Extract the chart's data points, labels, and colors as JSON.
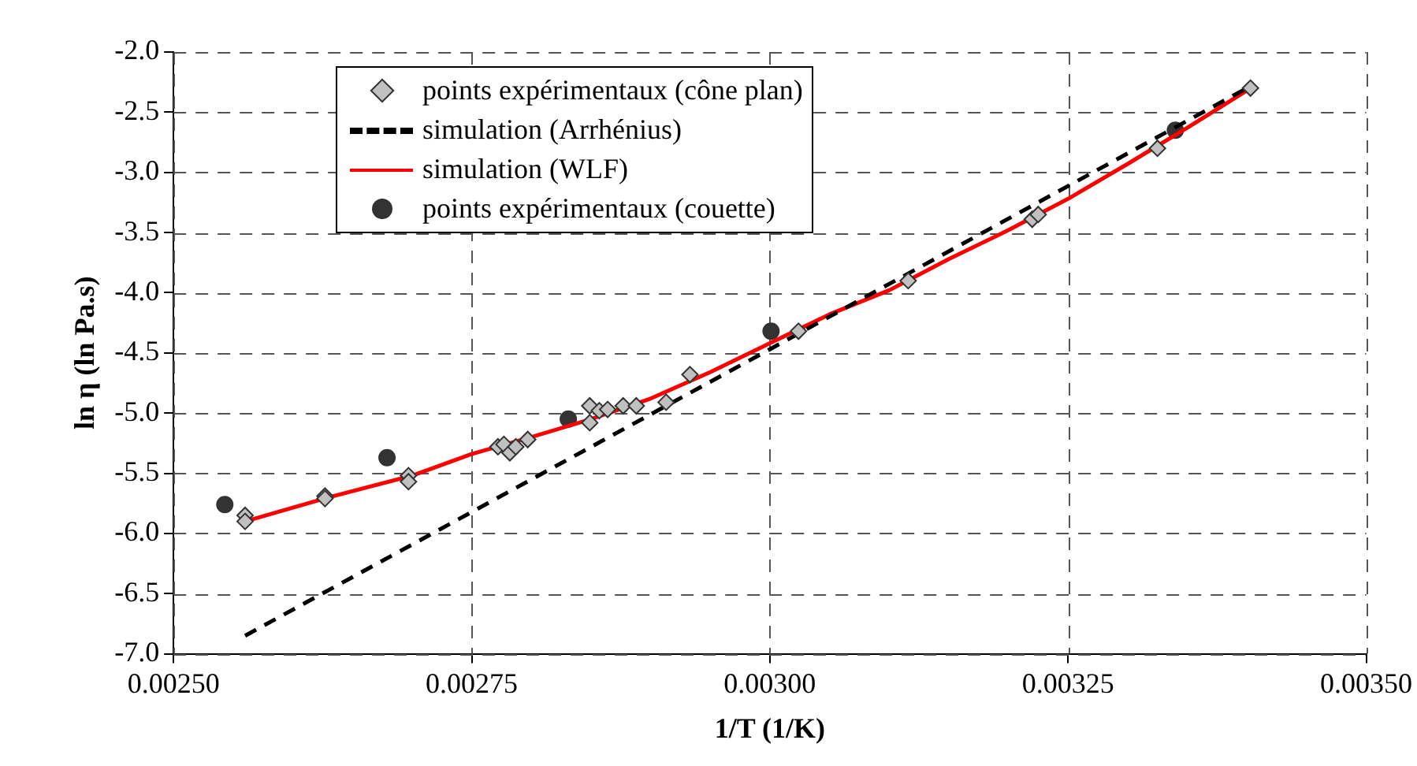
{
  "chart_data": {
    "type": "scatter",
    "xlabel": "1/T (1/K)",
    "ylabel": "ln η (ln Pa.s)",
    "xlim": [
      0.0025,
      0.0035
    ],
    "ylim": [
      -7,
      -2
    ],
    "xticks": [
      {
        "value": 0.0025,
        "label": "0.00250"
      },
      {
        "value": 0.00275,
        "label": "0.00275"
      },
      {
        "value": 0.003,
        "label": "0.00300"
      },
      {
        "value": 0.00325,
        "label": "0.00325"
      },
      {
        "value": 0.0035,
        "label": "0.00350"
      }
    ],
    "yticks": [
      {
        "value": -7,
        "label": "-7.0"
      },
      {
        "value": -6.5,
        "label": "-6.5"
      },
      {
        "value": -6,
        "label": "-6.0"
      },
      {
        "value": -5.5,
        "label": "-5.5"
      },
      {
        "value": -5,
        "label": "-5.0"
      },
      {
        "value": -4.5,
        "label": "-4.5"
      },
      {
        "value": -4,
        "label": "-4.0"
      },
      {
        "value": -3.5,
        "label": "-3.5"
      },
      {
        "value": -3,
        "label": "-3.0"
      },
      {
        "value": -2.5,
        "label": "-2.5"
      },
      {
        "value": -2,
        "label": "-2.0"
      }
    ],
    "grid": true,
    "legend": "top left",
    "series": [
      {
        "name": "points expérimentaux (cône plan)",
        "marker": "diamond",
        "color": "#c0c0c0",
        "x": [
          0.00256,
          0.00256,
          0.002627,
          0.002627,
          0.002697,
          0.002697,
          0.002772,
          0.002777,
          0.002782,
          0.002787,
          0.002797,
          0.002849,
          0.002849,
          0.002857,
          0.002864,
          0.002877,
          0.002888,
          0.002913,
          0.002933,
          0.003024,
          0.003116,
          0.00322,
          0.003225,
          0.003325,
          0.003403
        ],
        "values": [
          -5.85,
          -5.9,
          -5.69,
          -5.71,
          -5.52,
          -5.57,
          -5.28,
          -5.26,
          -5.33,
          -5.28,
          -5.22,
          -4.94,
          -5.08,
          -4.98,
          -4.97,
          -4.94,
          -4.94,
          -4.91,
          -4.68,
          -4.32,
          -3.9,
          -3.39,
          -3.35,
          -2.8,
          -2.3
        ]
      },
      {
        "name": "simulation (Arrhénius)",
        "type": "line",
        "marker": "none",
        "line_style": "dashed",
        "color": "#000000",
        "x": [
          0.00256,
          0.003,
          0.0034
        ],
        "values": [
          -6.85,
          -4.47,
          -2.3
        ]
      },
      {
        "name": "simulation (WLF)",
        "type": "line",
        "marker": "none",
        "line_style": "solid",
        "color": "#ff0000",
        "x": [
          0.00256,
          0.00263,
          0.0027,
          0.00275,
          0.0028,
          0.00285,
          0.0029,
          0.00295,
          0.003,
          0.00305,
          0.0031,
          0.00315,
          0.0032,
          0.00325,
          0.0033,
          0.00335,
          0.0034
        ],
        "values": [
          -5.9,
          -5.7,
          -5.52,
          -5.34,
          -5.2,
          -5.05,
          -4.88,
          -4.66,
          -4.42,
          -4.18,
          -3.98,
          -3.72,
          -3.48,
          -3.22,
          -2.93,
          -2.63,
          -2.32
        ]
      },
      {
        "name": "points expérimentaux (couette)",
        "marker": "circle",
        "color": "#333333",
        "x": [
          0.002543,
          0.002679,
          0.002831,
          0.003001,
          0.00334
        ],
        "values": [
          -5.76,
          -5.37,
          -5.05,
          -4.32,
          -2.65
        ]
      }
    ]
  }
}
